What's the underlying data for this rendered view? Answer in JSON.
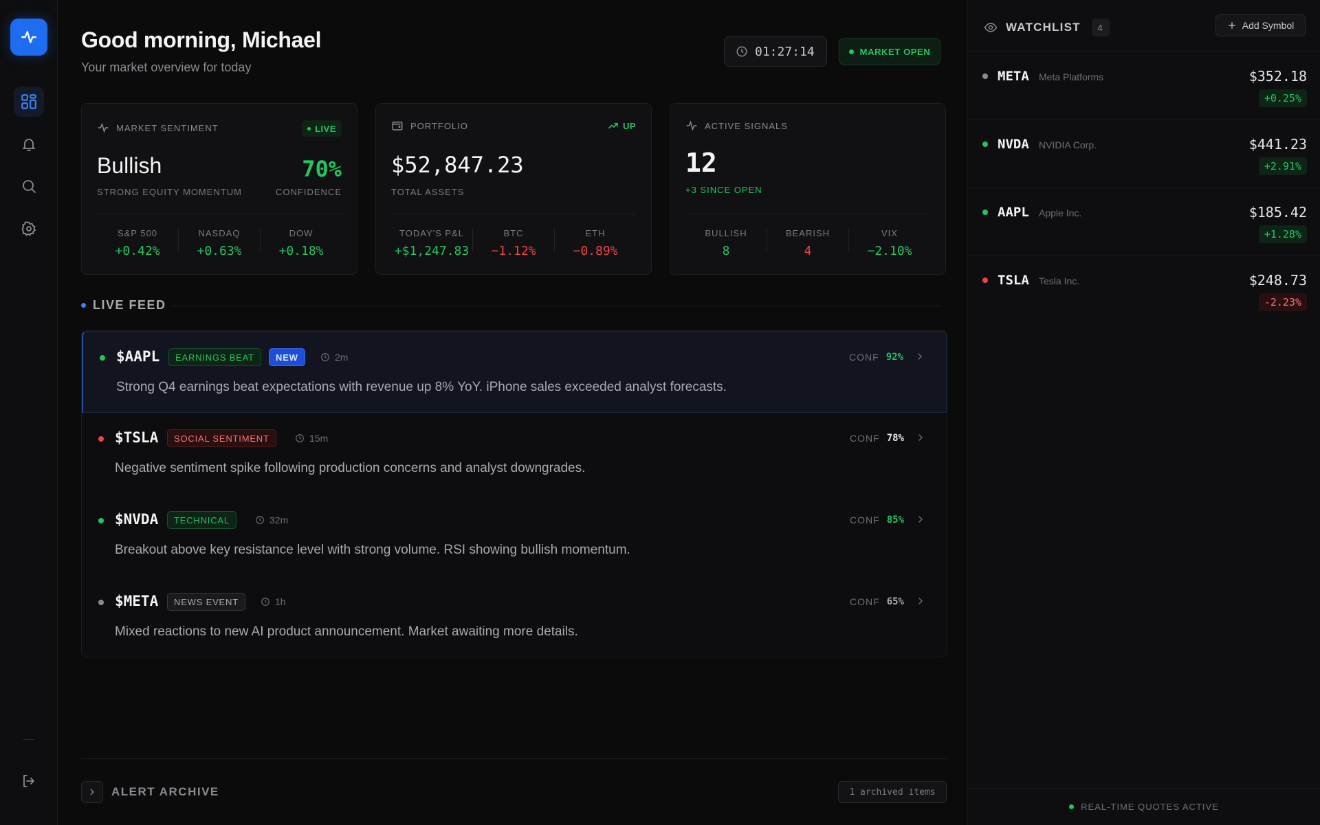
{
  "greeting": "Good morning, Michael",
  "subtitle": "Your market overview for today",
  "clock": "01:27:14",
  "market_status": "MARKET OPEN",
  "sidebar": {
    "logo_icon": "pulse-icon",
    "items": [
      "dashboard-icon",
      "bell-icon",
      "search-icon",
      "gear-icon"
    ],
    "logout_icon": "logout-icon"
  },
  "sentiment": {
    "title": "MARKET SENTIMENT",
    "badge": "LIVE",
    "value": "Bullish",
    "caption": "STRONG EQUITY MOMENTUM",
    "confidence": "70%",
    "confidence_label": "CONFIDENCE",
    "stats": [
      {
        "label": "S&P 500",
        "value": "+0.42%"
      },
      {
        "label": "NASDAQ",
        "value": "+0.63%"
      },
      {
        "label": "DOW",
        "value": "+0.18%"
      }
    ]
  },
  "portfolio": {
    "title": "PORTFOLIO",
    "badge": "UP",
    "value": "$52,847.23",
    "caption": "TOTAL ASSETS",
    "stats": [
      {
        "label": "TODAY'S P&L",
        "value": "+$1,247.83"
      },
      {
        "label": "BTC",
        "value": "−1.12%"
      },
      {
        "label": "ETH",
        "value": "−0.89%"
      }
    ]
  },
  "signals": {
    "title": "ACTIVE SIGNALS",
    "value": "12",
    "caption": "+3 SINCE OPEN",
    "stats": [
      {
        "label": "BULLISH",
        "value": "8"
      },
      {
        "label": "BEARISH",
        "value": "4"
      },
      {
        "label": "VIX",
        "value": "−2.10%"
      }
    ]
  },
  "feed": {
    "title": "LIVE FEED",
    "conf_label": "CONF",
    "alerts": [
      {
        "ticker": "$AAPL",
        "tag": "EARNINGS BEAT",
        "new_badge": "NEW",
        "time": "2m",
        "conf": "92%",
        "text": "Strong Q4 earnings beat expectations with revenue up 8% YoY. iPhone sales exceeded analyst forecasts."
      },
      {
        "ticker": "$TSLA",
        "tag": "SOCIAL SENTIMENT",
        "time": "15m",
        "conf": "78%",
        "text": "Negative sentiment spike following production concerns and analyst downgrades."
      },
      {
        "ticker": "$NVDA",
        "tag": "TECHNICAL",
        "time": "32m",
        "conf": "85%",
        "text": "Breakout above key resistance level with strong volume. RSI showing bullish momentum."
      },
      {
        "ticker": "$META",
        "tag": "NEWS EVENT",
        "time": "1h",
        "conf": "65%",
        "text": "Mixed reactions to new AI product announcement. Market awaiting more details."
      }
    ]
  },
  "archive": {
    "title": "ALERT ARCHIVE",
    "count": "1 archived items"
  },
  "watchlist": {
    "title": "WATCHLIST",
    "count": "4",
    "add_label": "Add Symbol",
    "items": [
      {
        "symbol": "META",
        "name": "Meta Platforms",
        "price": "$352.18",
        "change": "+0.25%"
      },
      {
        "symbol": "NVDA",
        "name": "NVIDIA Corp.",
        "price": "$441.23",
        "change": "+2.91%"
      },
      {
        "symbol": "AAPL",
        "name": "Apple Inc.",
        "price": "$185.42",
        "change": "+1.28%"
      },
      {
        "symbol": "TSLA",
        "name": "Tesla Inc.",
        "price": "$248.73",
        "change": "-2.23%"
      }
    ],
    "footer": "REAL-TIME QUOTES ACTIVE"
  },
  "colors": {
    "accent": "#1e6cf0",
    "positive": "#22c55e",
    "negative": "#ef4444",
    "neutral": "#8b8b92"
  }
}
